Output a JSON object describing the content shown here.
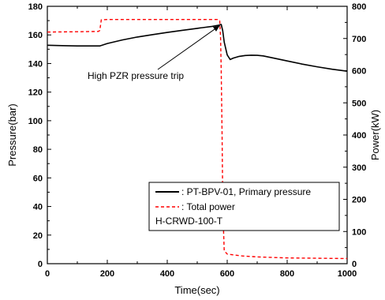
{
  "chart_data": {
    "type": "line",
    "xlabel": "Time(sec)",
    "ylabel_left": "Pressure(bar)",
    "ylabel_right": "Power(kW)",
    "xlim": [
      0,
      1000
    ],
    "ylim_left": [
      0,
      180
    ],
    "ylim_right": [
      0,
      800
    ],
    "x_ticks": [
      "0",
      "200",
      "400",
      "600",
      "800",
      "1000"
    ],
    "y_left_ticks": [
      "0",
      "20",
      "40",
      "60",
      "80",
      "100",
      "120",
      "140",
      "160",
      "180"
    ],
    "y_right_ticks": [
      "0",
      "100",
      "200",
      "300",
      "400",
      "500",
      "600",
      "700",
      "800"
    ],
    "grid": false,
    "legend_position": "lower-right",
    "series": [
      {
        "name": ": PT-BPV-01, Primary pressure",
        "axis": "left",
        "color": "#000000",
        "style": "solid",
        "x": [
          0,
          50,
          100,
          150,
          175,
          200,
          250,
          300,
          350,
          400,
          450,
          500,
          550,
          570,
          580,
          585,
          590,
          600,
          610,
          620,
          640,
          660,
          680,
          700,
          720,
          750,
          800,
          850,
          900,
          950,
          1000
        ],
        "y": [
          152.8,
          152.5,
          152.3,
          152.3,
          152.3,
          154.0,
          156.5,
          158.5,
          160.2,
          161.7,
          163.2,
          164.6,
          166.0,
          166.7,
          167.3,
          163,
          155,
          146,
          142.8,
          143.8,
          145.0,
          145.6,
          145.8,
          145.7,
          145.3,
          144.0,
          141.8,
          139.6,
          137.7,
          136.0,
          134.6
        ]
      },
      {
        "name": ": Total power",
        "axis": "right",
        "color": "#ff0000",
        "style": "dashed",
        "x": [
          0,
          100,
          170,
          175,
          180,
          200,
          300,
          400,
          500,
          550,
          570,
          575,
          578,
          580,
          583,
          585,
          588,
          590,
          600,
          650,
          700,
          800,
          900,
          1000
        ],
        "y": [
          720,
          721,
          722,
          725,
          758,
          759,
          759,
          759,
          759,
          759,
          759,
          755,
          700,
          600,
          400,
          200,
          100,
          40,
          30,
          24,
          21,
          18,
          17,
          16
        ]
      }
    ],
    "legend_extra": "H-CRWD-100-T",
    "annotation": {
      "text": "High PZR pressure trip",
      "x": 425,
      "y": 137.5,
      "arrow_to_x": 575,
      "arrow_to_y": 166.5
    }
  }
}
